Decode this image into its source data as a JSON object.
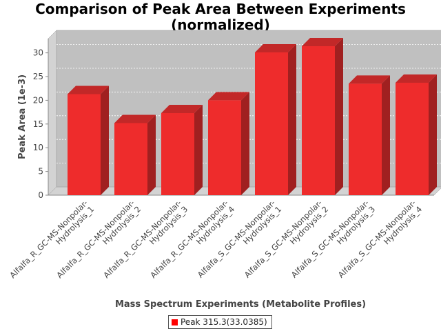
{
  "chart_data": {
    "type": "bar",
    "title_line1": "Comparison of Peak Area Between Experiments",
    "title_line2": "(normalized)",
    "xlabel": "Mass Spectrum Experiments (Metabolite Profiles)",
    "ylabel": "Peak Area (1e-3)",
    "ylim": [
      0,
      33
    ],
    "yticks": [
      0,
      5,
      10,
      15,
      20,
      25,
      30
    ],
    "categories": [
      [
        "Alfalfa_R_GC-MS-Nonpolar-",
        "Hydrolysis_1"
      ],
      [
        "Alfalfa_R_GC-MS-Nonpolar-",
        "Hydrolysis_2"
      ],
      [
        "Alfalfa_R_GC-MS-Nonpolar-",
        "Hydrolysis_3"
      ],
      [
        "Alfalfa_R_GC-MS-Nonpolar-",
        "Hydrolysis_4"
      ],
      [
        "Alfalfa_S_GC-MS-Nonpolar-",
        "Hydrolysis_1"
      ],
      [
        "Alfalfa_S_GC-MS-Nonpolar-",
        "Hydrolysis_2"
      ],
      [
        "Alfalfa_S_GC-MS-Nonpolar-",
        "Hydrolysis_3"
      ],
      [
        "Alfalfa_S_GC-MS-Nonpolar-",
        "Hydrolysis_4"
      ]
    ],
    "series": [
      {
        "name": "Peak 315.3(33.0385)",
        "values": [
          21.3,
          15.2,
          17.3,
          20.0,
          30.1,
          31.4,
          23.5,
          23.7
        ]
      }
    ],
    "grid": true,
    "legend_position": "bottom",
    "colors": {
      "bar": "#ee2c2c",
      "bar_top": "#c22828",
      "bar_side": "#a02020",
      "plot_bg": "#c0c0c0",
      "plot_wall": "#d3d3d3"
    }
  }
}
